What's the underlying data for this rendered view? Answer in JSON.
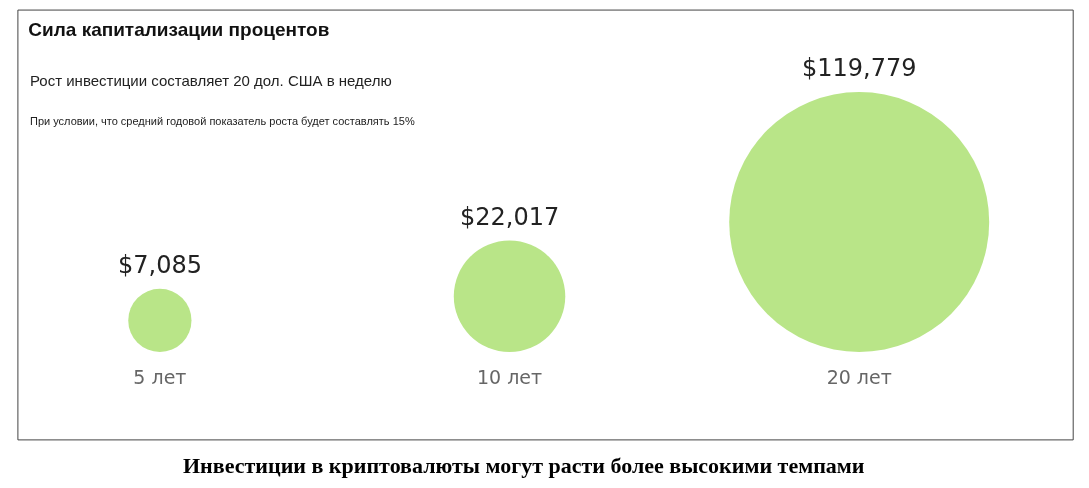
{
  "chart_data": {
    "type": "other",
    "title": "Сила капитализации процентов",
    "subtitle": "Рост инвестиции составляет 20 дол. США в неделю",
    "annotations": [
      "При условии, что средний годовой показатель роста будет составлять 15%",
      "Инвестиции в криптовалюты могут расти более высокими темпами"
    ],
    "categories": [
      "5 лет",
      "10 лет",
      "20 лет"
    ],
    "values": [
      7085,
      22017,
      119779
    ],
    "value_labels": [
      "$7,085",
      "$22,017",
      "$119,779"
    ],
    "color": "#b9e588",
    "legend": false
  }
}
